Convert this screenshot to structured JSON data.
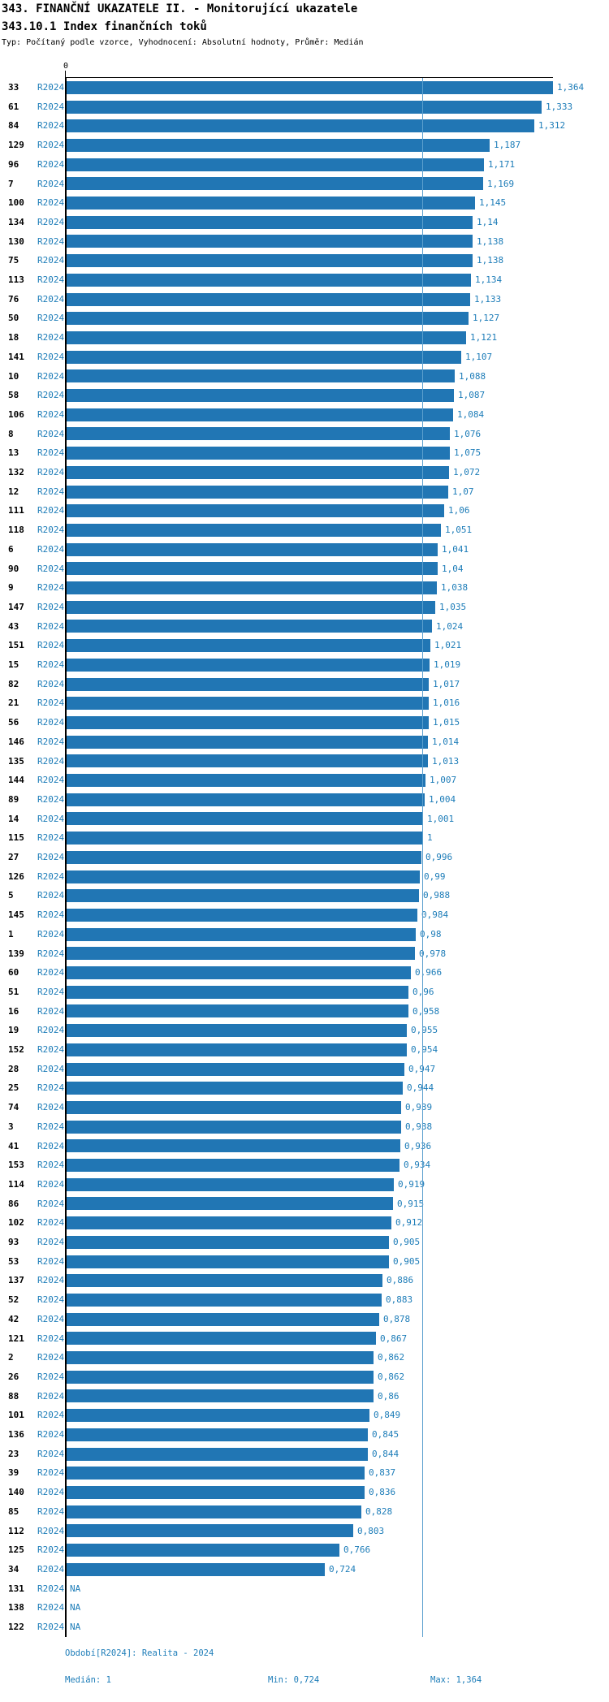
{
  "header": {
    "title_line1": "343. FINANČNÍ UKAZATELE II. - Monitorující ukazatele",
    "title_line2": "343.10.1 Index finančních toků",
    "subtitle": "Typ: Počítaný podle vzorce, Vyhodnocení: Absolutní hodnoty, Průměr: Medián"
  },
  "chart_data": {
    "type": "bar",
    "orientation": "horizontal",
    "title": "343.10.1 Index finančních toků",
    "xlabel": "",
    "ylabel": "",
    "xlim": [
      0,
      1.364
    ],
    "zero_tick_label": "0",
    "median_line_value": 1,
    "legend": "none",
    "grid": "off",
    "bar_color": "#2176b4",
    "text_color": "#1c7cb8",
    "na_label": "NA",
    "rows": [
      {
        "id": "33",
        "period": "R2024",
        "value": 1.364,
        "label": "1,364"
      },
      {
        "id": "61",
        "period": "R2024",
        "value": 1.333,
        "label": "1,333"
      },
      {
        "id": "84",
        "period": "R2024",
        "value": 1.312,
        "label": "1,312"
      },
      {
        "id": "129",
        "period": "R2024",
        "value": 1.187,
        "label": "1,187"
      },
      {
        "id": "96",
        "period": "R2024",
        "value": 1.171,
        "label": "1,171"
      },
      {
        "id": "7",
        "period": "R2024",
        "value": 1.169,
        "label": "1,169"
      },
      {
        "id": "100",
        "period": "R2024",
        "value": 1.145,
        "label": "1,145"
      },
      {
        "id": "134",
        "period": "R2024",
        "value": 1.14,
        "label": "1,14"
      },
      {
        "id": "130",
        "period": "R2024",
        "value": 1.138,
        "label": "1,138"
      },
      {
        "id": "75",
        "period": "R2024",
        "value": 1.138,
        "label": "1,138"
      },
      {
        "id": "113",
        "period": "R2024",
        "value": 1.134,
        "label": "1,134"
      },
      {
        "id": "76",
        "period": "R2024",
        "value": 1.133,
        "label": "1,133"
      },
      {
        "id": "50",
        "period": "R2024",
        "value": 1.127,
        "label": "1,127"
      },
      {
        "id": "18",
        "period": "R2024",
        "value": 1.121,
        "label": "1,121"
      },
      {
        "id": "141",
        "period": "R2024",
        "value": 1.107,
        "label": "1,107"
      },
      {
        "id": "10",
        "period": "R2024",
        "value": 1.088,
        "label": "1,088"
      },
      {
        "id": "58",
        "period": "R2024",
        "value": 1.087,
        "label": "1,087"
      },
      {
        "id": "106",
        "period": "R2024",
        "value": 1.084,
        "label": "1,084"
      },
      {
        "id": "8",
        "period": "R2024",
        "value": 1.076,
        "label": "1,076"
      },
      {
        "id": "13",
        "period": "R2024",
        "value": 1.075,
        "label": "1,075"
      },
      {
        "id": "132",
        "period": "R2024",
        "value": 1.072,
        "label": "1,072"
      },
      {
        "id": "12",
        "period": "R2024",
        "value": 1.07,
        "label": "1,07"
      },
      {
        "id": "111",
        "period": "R2024",
        "value": 1.06,
        "label": "1,06"
      },
      {
        "id": "118",
        "period": "R2024",
        "value": 1.051,
        "label": "1,051"
      },
      {
        "id": "6",
        "period": "R2024",
        "value": 1.041,
        "label": "1,041"
      },
      {
        "id": "90",
        "period": "R2024",
        "value": 1.04,
        "label": "1,04"
      },
      {
        "id": "9",
        "period": "R2024",
        "value": 1.038,
        "label": "1,038"
      },
      {
        "id": "147",
        "period": "R2024",
        "value": 1.035,
        "label": "1,035"
      },
      {
        "id": "43",
        "period": "R2024",
        "value": 1.024,
        "label": "1,024"
      },
      {
        "id": "151",
        "period": "R2024",
        "value": 1.021,
        "label": "1,021"
      },
      {
        "id": "15",
        "period": "R2024",
        "value": 1.019,
        "label": "1,019"
      },
      {
        "id": "82",
        "period": "R2024",
        "value": 1.017,
        "label": "1,017"
      },
      {
        "id": "21",
        "period": "R2024",
        "value": 1.016,
        "label": "1,016"
      },
      {
        "id": "56",
        "period": "R2024",
        "value": 1.015,
        "label": "1,015"
      },
      {
        "id": "146",
        "period": "R2024",
        "value": 1.014,
        "label": "1,014"
      },
      {
        "id": "135",
        "period": "R2024",
        "value": 1.013,
        "label": "1,013"
      },
      {
        "id": "144",
        "period": "R2024",
        "value": 1.007,
        "label": "1,007"
      },
      {
        "id": "89",
        "period": "R2024",
        "value": 1.004,
        "label": "1,004"
      },
      {
        "id": "14",
        "period": "R2024",
        "value": 1.001,
        "label": "1,001"
      },
      {
        "id": "115",
        "period": "R2024",
        "value": 1,
        "label": "1"
      },
      {
        "id": "27",
        "period": "R2024",
        "value": 0.996,
        "label": "0,996"
      },
      {
        "id": "126",
        "period": "R2024",
        "value": 0.99,
        "label": "0,99"
      },
      {
        "id": "5",
        "period": "R2024",
        "value": 0.988,
        "label": "0,988"
      },
      {
        "id": "145",
        "period": "R2024",
        "value": 0.984,
        "label": "0,984"
      },
      {
        "id": "1",
        "period": "R2024",
        "value": 0.98,
        "label": "0,98"
      },
      {
        "id": "139",
        "period": "R2024",
        "value": 0.978,
        "label": "0,978"
      },
      {
        "id": "60",
        "period": "R2024",
        "value": 0.966,
        "label": "0,966"
      },
      {
        "id": "51",
        "period": "R2024",
        "value": 0.96,
        "label": "0,96"
      },
      {
        "id": "16",
        "period": "R2024",
        "value": 0.958,
        "label": "0,958"
      },
      {
        "id": "19",
        "period": "R2024",
        "value": 0.955,
        "label": "0,955"
      },
      {
        "id": "152",
        "period": "R2024",
        "value": 0.954,
        "label": "0,954"
      },
      {
        "id": "28",
        "period": "R2024",
        "value": 0.947,
        "label": "0,947"
      },
      {
        "id": "25",
        "period": "R2024",
        "value": 0.944,
        "label": "0,944"
      },
      {
        "id": "74",
        "period": "R2024",
        "value": 0.939,
        "label": "0,939"
      },
      {
        "id": "3",
        "period": "R2024",
        "value": 0.938,
        "label": "0,938"
      },
      {
        "id": "41",
        "period": "R2024",
        "value": 0.936,
        "label": "0,936"
      },
      {
        "id": "153",
        "period": "R2024",
        "value": 0.934,
        "label": "0,934"
      },
      {
        "id": "114",
        "period": "R2024",
        "value": 0.919,
        "label": "0,919"
      },
      {
        "id": "86",
        "period": "R2024",
        "value": 0.915,
        "label": "0,915"
      },
      {
        "id": "102",
        "period": "R2024",
        "value": 0.912,
        "label": "0,912"
      },
      {
        "id": "93",
        "period": "R2024",
        "value": 0.905,
        "label": "0,905"
      },
      {
        "id": "53",
        "period": "R2024",
        "value": 0.905,
        "label": "0,905"
      },
      {
        "id": "137",
        "period": "R2024",
        "value": 0.886,
        "label": "0,886"
      },
      {
        "id": "52",
        "period": "R2024",
        "value": 0.883,
        "label": "0,883"
      },
      {
        "id": "42",
        "period": "R2024",
        "value": 0.878,
        "label": "0,878"
      },
      {
        "id": "121",
        "period": "R2024",
        "value": 0.867,
        "label": "0,867"
      },
      {
        "id": "2",
        "period": "R2024",
        "value": 0.862,
        "label": "0,862"
      },
      {
        "id": "26",
        "period": "R2024",
        "value": 0.862,
        "label": "0,862"
      },
      {
        "id": "88",
        "period": "R2024",
        "value": 0.86,
        "label": "0,86"
      },
      {
        "id": "101",
        "period": "R2024",
        "value": 0.849,
        "label": "0,849"
      },
      {
        "id": "136",
        "period": "R2024",
        "value": 0.845,
        "label": "0,845"
      },
      {
        "id": "23",
        "period": "R2024",
        "value": 0.844,
        "label": "0,844"
      },
      {
        "id": "39",
        "period": "R2024",
        "value": 0.837,
        "label": "0,837"
      },
      {
        "id": "140",
        "period": "R2024",
        "value": 0.836,
        "label": "0,836"
      },
      {
        "id": "85",
        "period": "R2024",
        "value": 0.828,
        "label": "0,828"
      },
      {
        "id": "112",
        "period": "R2024",
        "value": 0.803,
        "label": "0,803"
      },
      {
        "id": "125",
        "period": "R2024",
        "value": 0.766,
        "label": "0,766"
      },
      {
        "id": "34",
        "period": "R2024",
        "value": 0.724,
        "label": "0,724"
      },
      {
        "id": "131",
        "period": "R2024",
        "value": null,
        "label": "NA"
      },
      {
        "id": "138",
        "period": "R2024",
        "value": null,
        "label": "NA"
      },
      {
        "id": "122",
        "period": "R2024",
        "value": null,
        "label": "NA"
      }
    ]
  },
  "footer": {
    "period_info": "Období[R2024]: Realita - 2024",
    "median": "Medián: 1",
    "min": "Min: 0,724",
    "max": "Max: 1,364"
  },
  "colors": {
    "bar": "#2176b4",
    "blue_text": "#1c7cb8",
    "median_line": "#5b9fce",
    "axis": "#000000"
  }
}
